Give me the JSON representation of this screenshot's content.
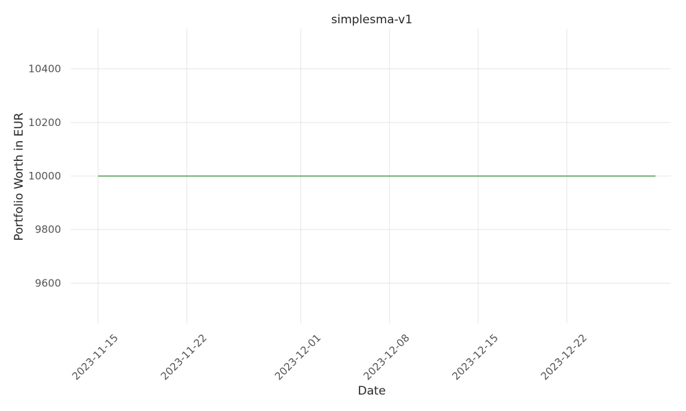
{
  "chart_data": {
    "type": "line",
    "title": "simplesma-v1",
    "xlabel": "Date",
    "ylabel": "Portfolio Worth in EUR",
    "x_ticks": [
      "2023-11-15",
      "2023-11-22",
      "2023-12-01",
      "2023-12-08",
      "2023-12-15",
      "2023-12-22"
    ],
    "y_ticks": [
      9600,
      9800,
      10000,
      10200,
      10400
    ],
    "xlim": [
      "2023-11-15",
      "2023-12-30"
    ],
    "ylim": [
      9450,
      10550
    ],
    "grid": true,
    "legend": "none",
    "series": [
      {
        "color": "#4a9c4e",
        "points": [
          {
            "x": "2023-11-15",
            "y": 10000
          },
          {
            "x": "2023-12-29",
            "y": 10000
          }
        ]
      }
    ]
  }
}
